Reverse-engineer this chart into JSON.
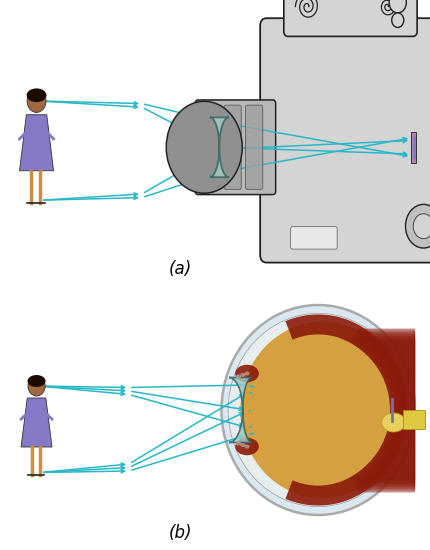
{
  "title_a": "(a)",
  "title_b": "(b)",
  "ray_color": "#29b8c8",
  "ray_lw": 1.1,
  "bg_color": "#ffffff",
  "fig_width": 4.3,
  "fig_height": 5.5,
  "dpi": 100,
  "cam_body": "#d4d4d4",
  "cam_edge": "#222222",
  "lens_fill": "#a8c8c0",
  "lens_edge": "#336666",
  "girl_top": "#8878c8",
  "girl_legs": "#c89040",
  "girl_skin": "#a06840",
  "girl_hair": "#1a0a00",
  "eye_sclera_fill": "#dce8f0",
  "eye_sclera_edge": "#aaaaaa",
  "eye_vitreous": "#d4a040",
  "eye_choroid": "#8b1a0a",
  "eye_cornea": "#a0c8c0",
  "eye_lens_fill": "#b0d0c8",
  "retina_image_color": "#7070b0"
}
